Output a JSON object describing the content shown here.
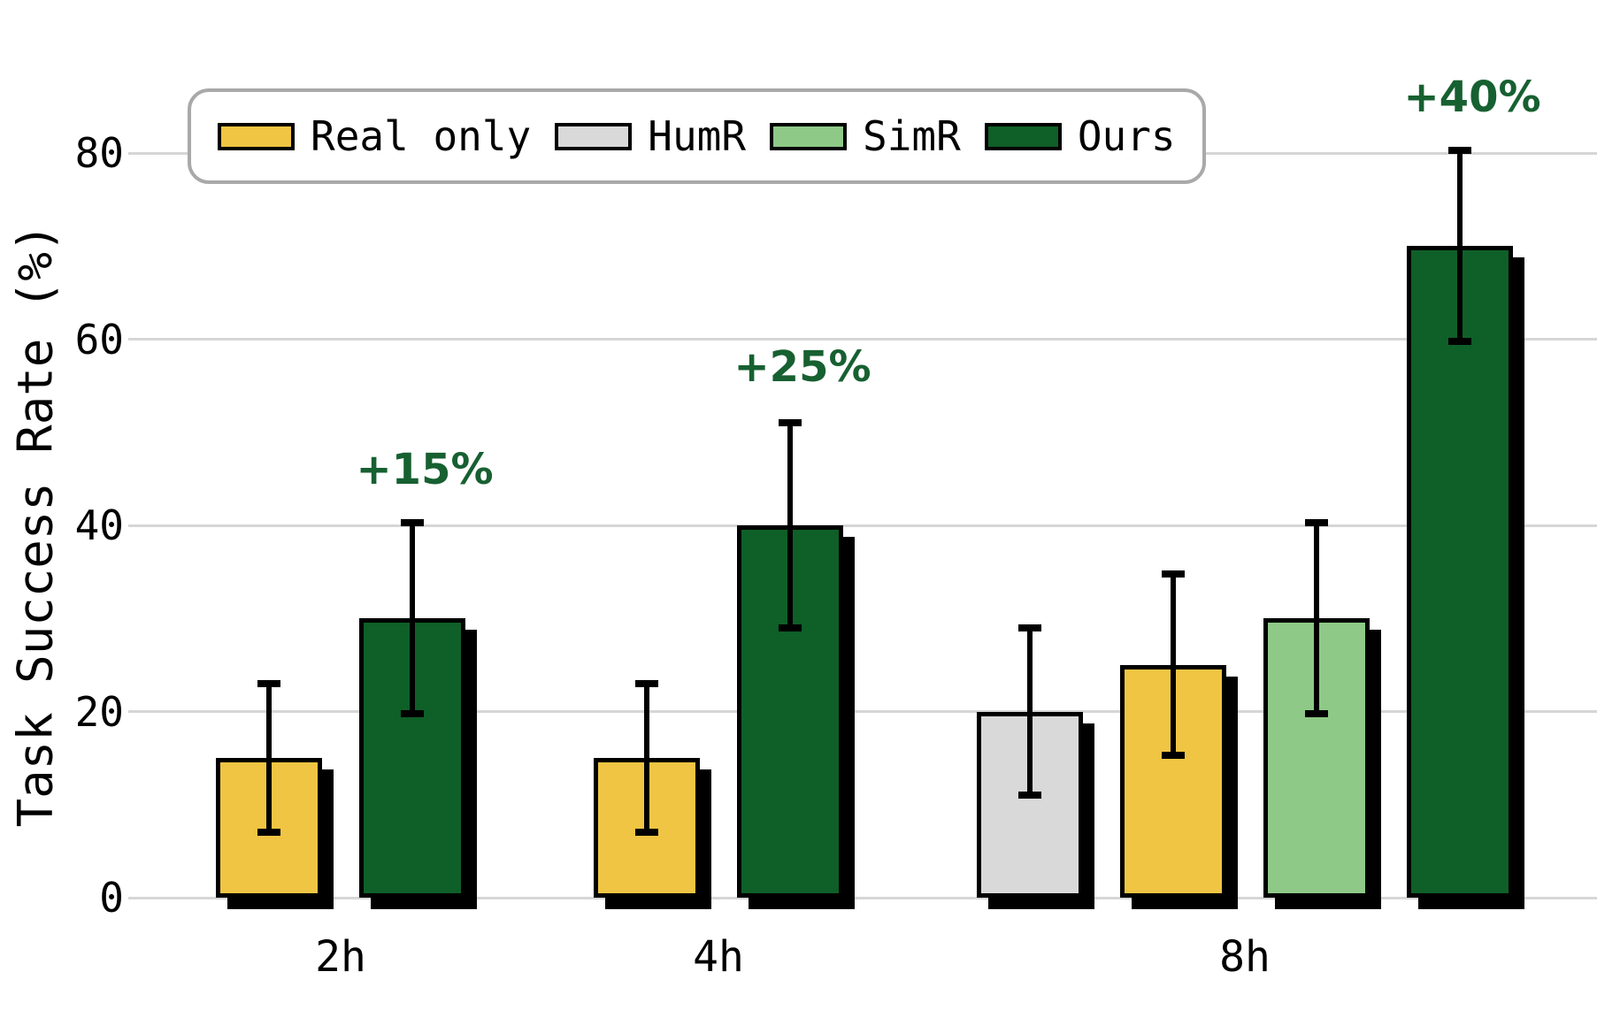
{
  "chart_data": {
    "type": "bar",
    "title": "",
    "xlabel": "",
    "ylabel": "Task Success Rate (%)",
    "categories": [
      "2h",
      "4h",
      "8h"
    ],
    "ytick_labels": [
      "0",
      "20",
      "40",
      "60",
      "80"
    ],
    "ytick_values": [
      0,
      20,
      40,
      60,
      80
    ],
    "ylim": [
      0,
      90
    ],
    "grid": true,
    "legend_position": "top-left",
    "legend_labels": [
      "Real only",
      "HumR",
      "SimR",
      "Ours"
    ],
    "series_colors": {
      "Real only": "#F0C543",
      "HumR": "#D9D9D9",
      "SimR": "#8EC987",
      "Ours": "#0F5F28"
    },
    "bars": [
      {
        "group": "2h",
        "series": "Real only",
        "value": 15,
        "err": 8
      },
      {
        "group": "2h",
        "series": "Ours",
        "value": 30,
        "err": 10.25
      },
      {
        "group": "4h",
        "series": "Real only",
        "value": 15,
        "err": 8
      },
      {
        "group": "4h",
        "series": "Ours",
        "value": 40,
        "err": 11
      },
      {
        "group": "8h",
        "series": "HumR",
        "value": 20,
        "err": 9
      },
      {
        "group": "8h",
        "series": "Real only",
        "value": 25,
        "err": 9.75
      },
      {
        "group": "8h",
        "series": "SimR",
        "value": 30,
        "err": 10.25
      },
      {
        "group": "8h",
        "series": "Ours",
        "value": 70,
        "err": 10.25
      }
    ],
    "annotations": [
      {
        "text": "+15%",
        "group": "2h",
        "series": "Ours",
        "y_value": 46
      },
      {
        "text": "+25%",
        "group": "4h",
        "series": "Ours",
        "y_value": 57
      },
      {
        "text": "+40%",
        "group": "8h",
        "series": "Ours",
        "y_value": 86
      }
    ],
    "annotation_color": "#176031",
    "gridline_color": "#D6D6D6",
    "error_bar_color": "#000000",
    "legend_border_color": "#A9A9A9"
  }
}
